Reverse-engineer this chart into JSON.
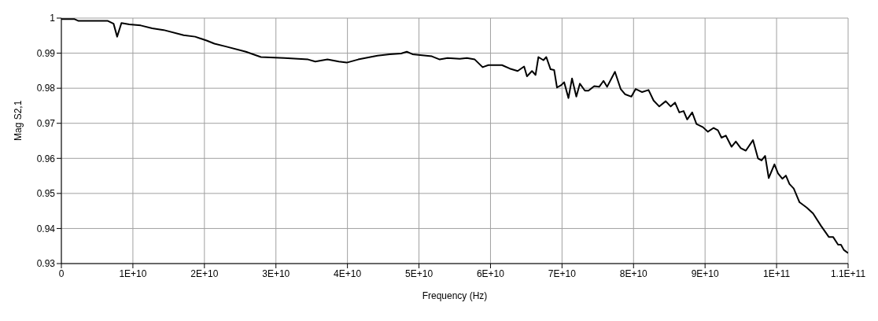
{
  "chart_data": {
    "type": "line",
    "xlabel": "Frequency (Hz)",
    "ylabel": "Mag S2,1",
    "xlim": [
      0,
      110000000000
    ],
    "ylim": [
      0.93,
      1
    ],
    "xticks": [
      0,
      {
        "value": 10000000000,
        "label": "1E+10"
      },
      {
        "value": 20000000000,
        "label": "2E+10"
      },
      {
        "value": 30000000000,
        "label": "3E+10"
      },
      {
        "value": 40000000000,
        "label": "4E+10"
      },
      {
        "value": 50000000000,
        "label": "5E+10"
      },
      {
        "value": 60000000000,
        "label": "6E+10"
      },
      {
        "value": 70000000000,
        "label": "7E+10"
      },
      {
        "value": 80000000000,
        "label": "8E+10"
      },
      {
        "value": 90000000000,
        "label": "9E+10"
      },
      {
        "value": 100000000000,
        "label": "1E+11"
      },
      {
        "value": 110000000000,
        "label": "1.1E+11"
      }
    ],
    "yticks": [
      0.93,
      0.94,
      0.95,
      0.96,
      0.97,
      0.98,
      0.99,
      1
    ],
    "grid": true,
    "line_style": "solid",
    "marker": "none",
    "series": [
      {
        "color": "#000000",
        "x": [
          0,
          1850000000.0,
          2400000000.0,
          6500000000.0,
          7300000000.0,
          7800000000.0,
          8400000000.0,
          9500000000.0,
          11100000000.0,
          12700000000.0,
          14300000000.0,
          17100000000.0,
          18700000000.0,
          20300000000.0,
          21400000000.0,
          23000000000.0,
          25800000000.0,
          27900000000.0,
          31200000000.0,
          34500000000.0,
          35500000000.0,
          37200000000.0,
          38800000000.0,
          39900000000.0,
          41500000000.0,
          43200000000.0,
          44200000000.0,
          45900000000.0,
          47500000000.0,
          48300000000.0,
          49100000000.0,
          51800000000.0,
          52900000000.0,
          54000000000.0,
          55700000000.0,
          56700000000.0,
          57800000000.0,
          58900000000.0,
          59700000000.0,
          61600000000.0,
          62700000000.0,
          63800000000.0,
          64700000000.0,
          65100000000.0,
          65800000000.0,
          66300000000.0,
          66700000000.0,
          67400000000.0,
          67800000000.0,
          68400000000.0,
          68900000000.0,
          69300000000.0,
          69900000000.0,
          70300000000.0,
          70900000000.0,
          71400000000.0,
          72000000000.0,
          72500000000.0,
          73200000000.0,
          73700000000.0,
          74500000000.0,
          75200000000.0,
          75800000000.0,
          76300000000.0,
          77400000000.0,
          78200000000.0,
          78800000000.0,
          79700000000.0,
          80300000000.0,
          81200000000.0,
          82100000000.0,
          82800000000.0,
          83600000000.0,
          84500000000.0,
          85200000000.0,
          85800000000.0,
          86400000000.0,
          87000000000.0,
          87500000000.0,
          88200000000.0,
          88800000000.0,
          89700000000.0,
          90400000000.0,
          91200000000.0,
          91800000000.0,
          92300000000.0,
          92900000000.0,
          93700000000.0,
          94300000000.0,
          95000000000.0,
          95700000000.0,
          96700000000.0,
          97400000000.0,
          97900000000.0,
          98400000000.0,
          98900000000.0,
          99700000000.0,
          100200000000.0,
          100800000000.0,
          101300000000.0,
          101800000000.0,
          102400000000.0,
          103200000000.0,
          104200000000.0,
          105100000000.0,
          106200000000.0,
          107300000000.0,
          107900000000.0,
          108600000000.0,
          109000000000.0,
          109400000000.0,
          110000000000.0
        ],
        "values": [
          0.9997,
          0.9997,
          0.9992,
          0.9992,
          0.9984,
          0.9947,
          0.9986,
          0.9982,
          0.9979,
          0.9971,
          0.9966,
          0.9951,
          0.9947,
          0.9936,
          0.9927,
          0.9919,
          0.9904,
          0.9889,
          0.9886,
          0.9882,
          0.9876,
          0.9882,
          0.9876,
          0.9873,
          0.9882,
          0.9889,
          0.9893,
          0.9897,
          0.9899,
          0.9904,
          0.9897,
          0.9891,
          0.9882,
          0.9886,
          0.9884,
          0.9886,
          0.9882,
          0.986,
          0.9866,
          0.9866,
          0.9856,
          0.9849,
          0.9862,
          0.9834,
          0.9849,
          0.9838,
          0.9889,
          0.988,
          0.9889,
          0.9854,
          0.9852,
          0.9802,
          0.9809,
          0.9817,
          0.9772,
          0.9828,
          0.9776,
          0.9813,
          0.9793,
          0.9793,
          0.9806,
          0.9804,
          0.9821,
          0.9804,
          0.9847,
          0.9798,
          0.9783,
          0.9776,
          0.9798,
          0.9789,
          0.9795,
          0.9765,
          0.9748,
          0.9763,
          0.9748,
          0.9759,
          0.9731,
          0.9735,
          0.9711,
          0.9731,
          0.9698,
          0.9689,
          0.9676,
          0.9687,
          0.968,
          0.9659,
          0.9665,
          0.9633,
          0.9648,
          0.9629,
          0.9622,
          0.9652,
          0.96,
          0.9594,
          0.9607,
          0.9544,
          0.9583,
          0.9557,
          0.9542,
          0.9551,
          0.9527,
          0.9514,
          0.9475,
          0.946,
          0.9443,
          0.9408,
          0.9376,
          0.9376,
          0.9354,
          0.9354,
          0.9339,
          0.933
        ]
      }
    ]
  }
}
